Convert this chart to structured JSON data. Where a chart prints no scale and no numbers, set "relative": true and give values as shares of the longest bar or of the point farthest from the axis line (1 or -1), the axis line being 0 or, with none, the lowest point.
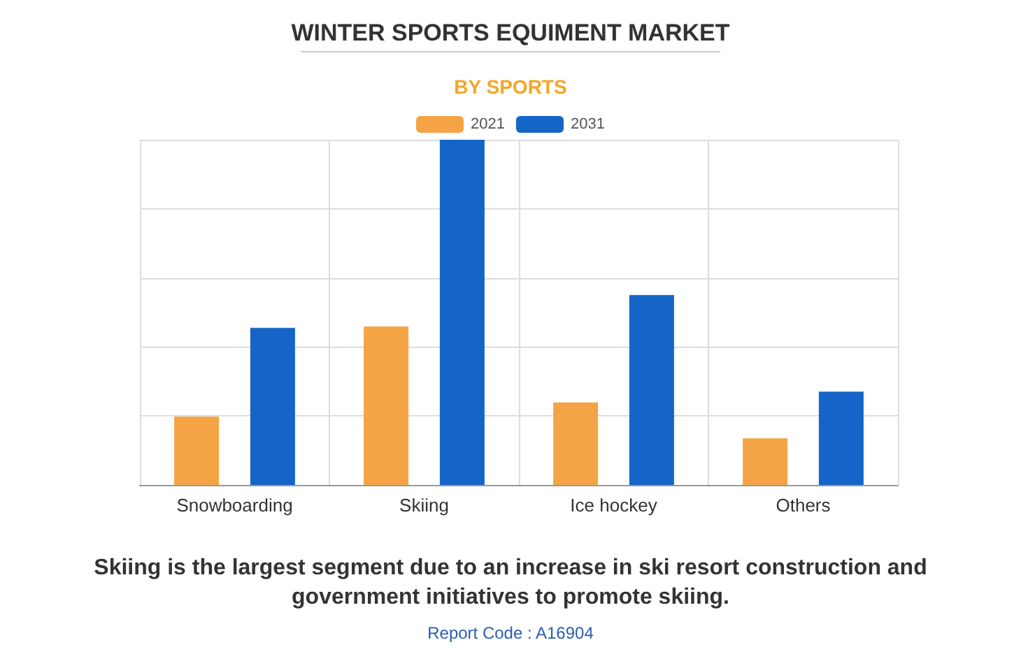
{
  "chart_data": {
    "type": "bar",
    "title": "WINTER SPORTS EQUIMENT MARKET",
    "subtitle": "BY SPORTS",
    "categories": [
      "Snowboarding",
      "Skiing",
      "Ice hockey",
      "Others"
    ],
    "series": [
      {
        "name": "2021",
        "color": "#f4a445",
        "values": [
          0.198,
          0.459,
          0.239,
          0.135
        ]
      },
      {
        "name": "2031",
        "color": "#1565c8",
        "values": [
          0.455,
          1,
          0.55,
          0.27
        ]
      }
    ],
    "relative": true,
    "grid": true,
    "legend": "top",
    "annotations": [
      "Skiing is the largest segment due to an increase in ski resort construction and government initiatives to promote skiing.",
      "Report Code : A16904"
    ]
  }
}
